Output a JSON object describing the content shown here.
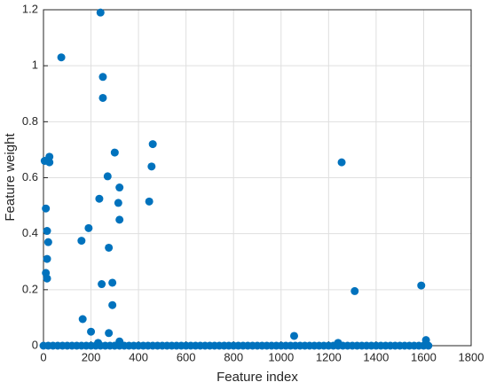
{
  "chart_data": {
    "type": "scatter",
    "xlabel": "Feature index",
    "ylabel": "Feature weight",
    "color": "#0072bd",
    "grid": true,
    "xlim": [
      0,
      1800
    ],
    "ylim": [
      0,
      1.2
    ],
    "xticks": [
      0,
      200,
      400,
      600,
      800,
      1000,
      1200,
      1400,
      1600,
      1800
    ],
    "yticks": [
      0,
      0.2,
      0.4,
      0.6,
      0.8,
      1,
      1.2
    ],
    "x": [
      75,
      240,
      250,
      250,
      300,
      460,
      455,
      5,
      25,
      25,
      270,
      320,
      235,
      315,
      445,
      10,
      320,
      190,
      15,
      20,
      160,
      275,
      15,
      10,
      15,
      245,
      290,
      290,
      165,
      200,
      275,
      1255,
      1310,
      1590,
      1055,
      1610,
      1240,
      320,
      230,
      0,
      20,
      40,
      60,
      80,
      100,
      120,
      140,
      160,
      180,
      200,
      220,
      240,
      260,
      280,
      300,
      320,
      340,
      360,
      380,
      400,
      420,
      440,
      460,
      480,
      500,
      520,
      540,
      560,
      580,
      600,
      620,
      640,
      660,
      680,
      700,
      720,
      740,
      760,
      780,
      800,
      820,
      840,
      860,
      880,
      900,
      920,
      940,
      960,
      980,
      1000,
      1020,
      1040,
      1060,
      1080,
      1100,
      1120,
      1140,
      1160,
      1180,
      1200,
      1220,
      1240,
      1260,
      1280,
      1300,
      1320,
      1340,
      1360,
      1380,
      1400,
      1420,
      1440,
      1460,
      1480,
      1500,
      1520,
      1540,
      1560,
      1580,
      1600,
      1620
    ],
    "y": [
      1.03,
      1.19,
      0.96,
      0.885,
      0.69,
      0.72,
      0.64,
      0.66,
      0.675,
      0.655,
      0.605,
      0.565,
      0.525,
      0.51,
      0.515,
      0.49,
      0.45,
      0.42,
      0.41,
      0.37,
      0.375,
      0.35,
      0.31,
      0.26,
      0.24,
      0.22,
      0.225,
      0.145,
      0.095,
      0.05,
      0.045,
      0.655,
      0.195,
      0.215,
      0.035,
      0.02,
      0.01,
      0.015,
      0.01,
      0,
      0,
      0,
      0,
      0,
      0,
      0,
      0,
      0,
      0,
      0,
      0,
      0,
      0,
      0,
      0,
      0,
      0,
      0,
      0,
      0,
      0,
      0,
      0,
      0,
      0,
      0,
      0,
      0,
      0,
      0,
      0,
      0,
      0,
      0,
      0,
      0,
      0,
      0,
      0,
      0,
      0,
      0,
      0,
      0,
      0,
      0,
      0,
      0,
      0,
      0,
      0,
      0,
      0,
      0,
      0,
      0,
      0,
      0,
      0,
      0,
      0,
      0,
      0,
      0,
      0,
      0,
      0,
      0,
      0,
      0,
      0,
      0,
      0,
      0,
      0,
      0,
      0,
      0,
      0,
      0,
      0
    ]
  }
}
